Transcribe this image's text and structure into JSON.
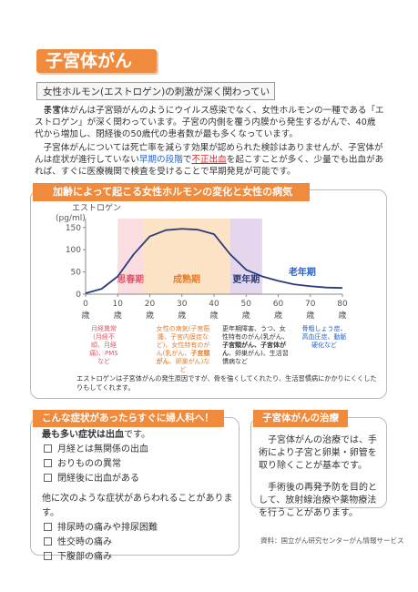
{
  "header": {
    "title": "子宮体がん",
    "subtitle": "女性ホルモン(エストロゲン)の刺激が深く関わっています"
  },
  "intro": {
    "paragraphs": [
      [
        "子宮体がんは子宮頸がんのようにウイルス感染でなく、女性ホルモンの一種である「エストロゲン」が深く関わっています。子宮の内側を覆う内膜から発生するがんで、40歳代から増加し、閉経後の50歳代の患者数が最も多くなっています。"
      ],
      [
        "子宮体がんについては死亡率を減らす効果が認められた検診はありませんが、子宮体がんは症状が進行していない",
        "早期の段階",
        "で",
        "不正出血",
        "を起こすことが多く、少量でも出血があれば、すぐに医療機関で検査を受けることで早期発見が可能です。"
      ]
    ]
  },
  "chart_data": {
    "type": "line",
    "title": "加齢によって起こる女性ホルモンの変化と女性の病気",
    "y_label": "エストロゲン",
    "y_unit": "(pg/ml)",
    "x_unit": "歳",
    "x": [
      0,
      5,
      10,
      15,
      20,
      25,
      30,
      35,
      40,
      45,
      50,
      55,
      60,
      65,
      70,
      75,
      80
    ],
    "series": [
      {
        "color": "#2b3a7a",
        "values": [
          2,
          12,
          40,
          90,
          130,
          144,
          147,
          145,
          135,
          90,
          55,
          40,
          30,
          22,
          18,
          15,
          14
        ]
      }
    ],
    "xlim": [
      0,
      80
    ],
    "xticks": [
      0,
      10,
      20,
      30,
      40,
      50,
      60,
      70,
      80
    ],
    "ylim": [
      0,
      170
    ],
    "yticks": [
      0,
      50,
      100,
      150
    ],
    "phases": [
      {
        "label": "思春期",
        "range": [
          10,
          18
        ],
        "color": "#f9dde0"
      },
      {
        "label": "成熟期",
        "range": [
          18,
          45
        ],
        "color": "#fde3c6"
      },
      {
        "label": "更年期",
        "range": [
          45,
          55
        ],
        "color": "#e4d6ec"
      },
      {
        "label": "老年期",
        "range": [
          55,
          80
        ]
      }
    ],
    "notes": [
      [
        "月経異常(月経不順、月経痛)、PMSなど"
      ],
      [
        "女性の病気(子宮筋腫、子宮内膜症など)、女性特有のがん(乳がん、",
        "子宮頸がん",
        "、卵巣がん)など"
      ],
      [
        "更年期障害、うつ、女性特有のがん(乳がん、",
        "子宮頸がん、子宮体がん",
        "、卵巣がん)、生活習慣病など"
      ],
      [
        "骨粗しょう症、高血圧症、動脈硬化など"
      ]
    ],
    "footnote": "エストロゲンは子宮体がんの発生原因ですが、骨を強くしてくれたり、生活習慣病にかかりにくくしたりもしてくれます。"
  },
  "symptoms": {
    "title": "こんな症状があったらすぐに婦人科へ！",
    "lead": [
      "最も多い症状は出血",
      "です。"
    ],
    "items": [
      "月経とは無関係の出血",
      "おりものの異常",
      "閉経後に出血がある"
    ],
    "other": "他に次のような症状があらわれることがあります。",
    "other_items": [
      "排尿時の痛みや排尿困難",
      "性交時の痛み",
      "下腹部の痛み"
    ]
  },
  "treatment": {
    "title": "子宮体がんの治療",
    "paragraphs": [
      "子宮体がんの治療では、手術により子宮と卵巣・卵管を取り除くことが基本です。",
      "手術後の再発予防を目的として、放射線治療や薬物療法を行うことがあります。"
    ]
  },
  "source": "資料：国立がん研究センターがん情報サービス"
}
